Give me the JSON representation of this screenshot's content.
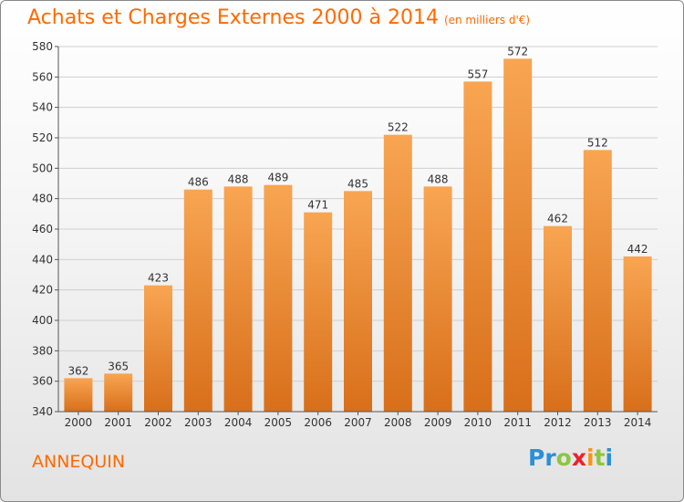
{
  "header": {
    "title": "Achats et Charges Externes 2000 à 2014",
    "subtitle": "(en milliers d'€)"
  },
  "footer": {
    "town": "ANNEQUIN",
    "logo_letters": [
      {
        "ch": "P",
        "color": "#2c8fd6"
      },
      {
        "ch": "r",
        "color": "#2c8fd6"
      },
      {
        "ch": "o",
        "color": "#8dc63f"
      },
      {
        "ch": "x",
        "color": "#e8232f"
      },
      {
        "ch": "i",
        "color": "#f7941d"
      },
      {
        "ch": "t",
        "color": "#8dc63f"
      },
      {
        "ch": "i",
        "color": "#2c8fd6"
      }
    ]
  },
  "chart_data": {
    "type": "bar",
    "title": "Achats et Charges Externes 2000 à 2014",
    "subtitle": "(en milliers d'€)",
    "categories": [
      "2000",
      "2001",
      "2002",
      "2003",
      "2004",
      "2005",
      "2006",
      "2007",
      "2008",
      "2009",
      "2010",
      "2011",
      "2012",
      "2013",
      "2014"
    ],
    "values": [
      362,
      365,
      423,
      486,
      488,
      489,
      471,
      485,
      522,
      488,
      557,
      572,
      462,
      512,
      442
    ],
    "ylim": [
      340,
      580
    ],
    "yticks": [
      340,
      360,
      380,
      400,
      420,
      440,
      460,
      480,
      500,
      520,
      540,
      560,
      580
    ],
    "grid": true,
    "bar_color": "#f28e2b"
  }
}
